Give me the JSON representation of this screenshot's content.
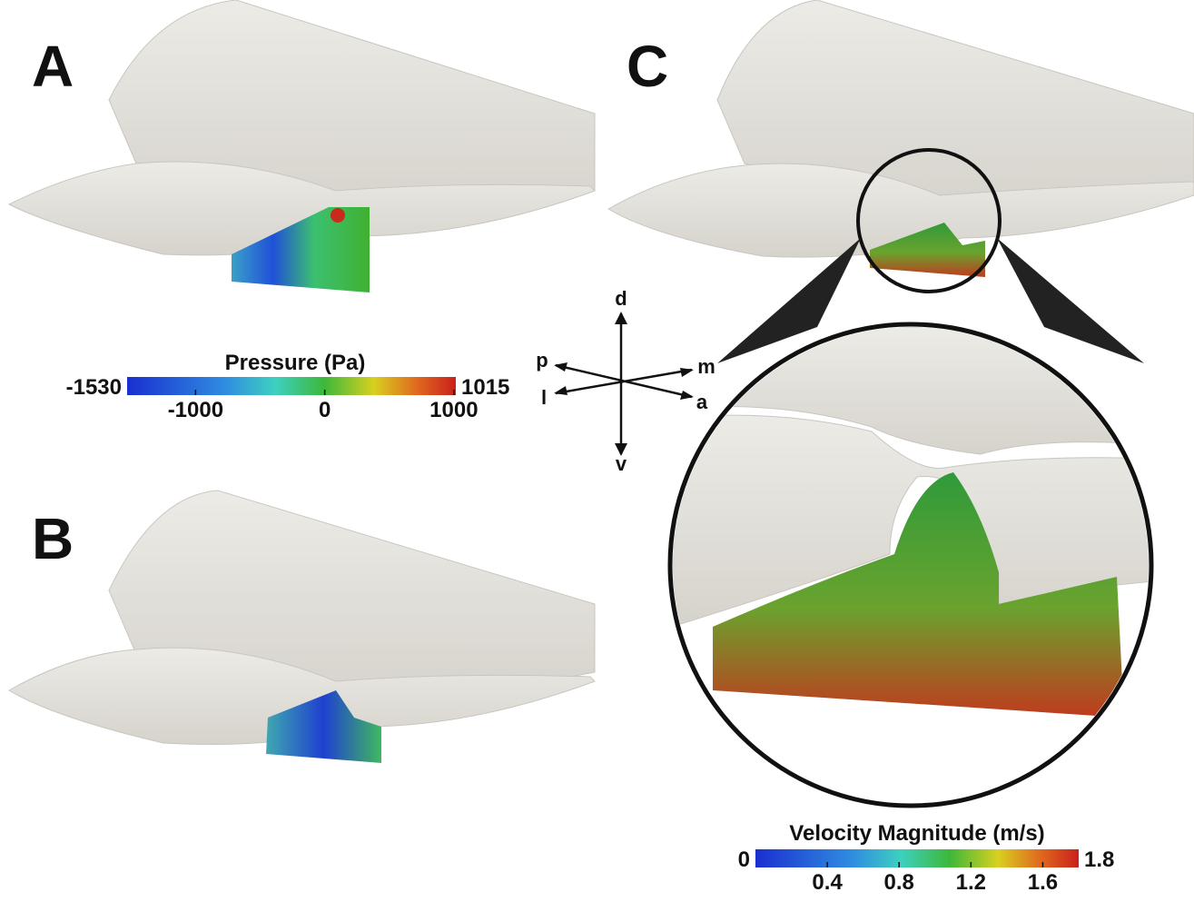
{
  "panels": [
    {
      "label": "A"
    },
    {
      "label": "B"
    },
    {
      "label": "C"
    }
  ],
  "pressure_colorbar": {
    "title": "Pressure (Pa)",
    "min": -1530,
    "max": 1015,
    "ticks": [
      -1000,
      0,
      1000
    ]
  },
  "orientation": {
    "up": "d",
    "down": "v",
    "upper_left": "p",
    "upper_right": "m",
    "lower_left": "l",
    "lower_right": "a"
  },
  "velocity_colorbar": {
    "title": "Velocity Magnitude (m/s)",
    "min": 0,
    "max": 1.8,
    "ticks": [
      0.4,
      0.8,
      1.2,
      1.6
    ]
  }
}
